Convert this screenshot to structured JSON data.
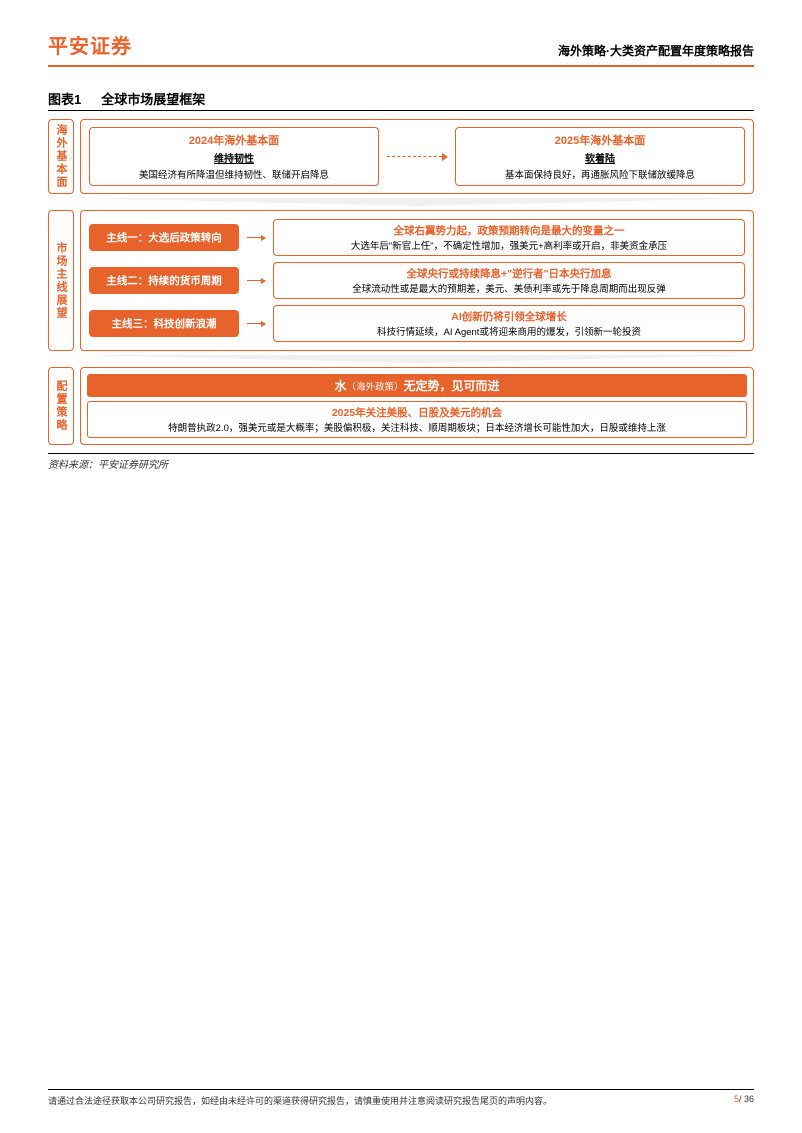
{
  "colors": {
    "accent": "#e8622c",
    "text": "#000000",
    "background": "#ffffff",
    "connector_gray": "#cccccc"
  },
  "header": {
    "logo": "平安证券",
    "subtitle": "海外策略·大类资产配置年度策略报告"
  },
  "chart": {
    "label_prefix": "图表1",
    "title": "全球市场展望框架"
  },
  "fundamentals": {
    "vlabel": "海外基本面",
    "left": {
      "title": "2024年海外基本面",
      "sub": "维持韧性",
      "desc": "美国经济有所降温但维持韧性、联储开启降息"
    },
    "right": {
      "title": "2025年海外基本面",
      "sub": "软着陆",
      "desc": "基本面保持良好，再通胀风险下联储放缓降息"
    }
  },
  "themes": {
    "vlabel": "市场主线展望",
    "rows": [
      {
        "tag": "主线一：大选后政策转向",
        "head": "全球右翼势力起，政策预期转向是最大的变量之一",
        "desc": "大选年后\"新官上任\"，不确定性增加，强美元+高利率或开启，非美资金承压"
      },
      {
        "tag": "主线二：持续的货币周期",
        "head": "全球央行或持续降息+\"逆行者\"日本央行加息",
        "desc": "全球流动性或是最大的预期差，美元、美债利率或先于降息周期而出现反弹"
      },
      {
        "tag": "主线三：科技创新浪潮",
        "head": "AI创新仍将引领全球增长",
        "desc": "科技行情延续，AI Agent或将迎来商用的爆发，引领新一轮投资"
      }
    ]
  },
  "alloc": {
    "vlabel": "配置策略",
    "banner_main": "水",
    "banner_small": "（海外政策）",
    "banner_rest": "无定势，见可而进",
    "sub_head": "2025年关注美股、日股及美元的机会",
    "sub_desc": "特朗普执政2.0，强美元或是大概率；美股偏积极，关注科技、顺周期板块；日本经济增长可能性加大，日股或维持上涨"
  },
  "source": "资料来源：平安证券研究所",
  "footer": {
    "disclaimer": "请通过合法途径获取本公司研究报告，如经由未经许可的渠道获得研究报告，请慎重使用并注意阅读研究报告尾页的声明内容。",
    "page_current": "5",
    "page_sep": "/ ",
    "page_total": "36"
  }
}
